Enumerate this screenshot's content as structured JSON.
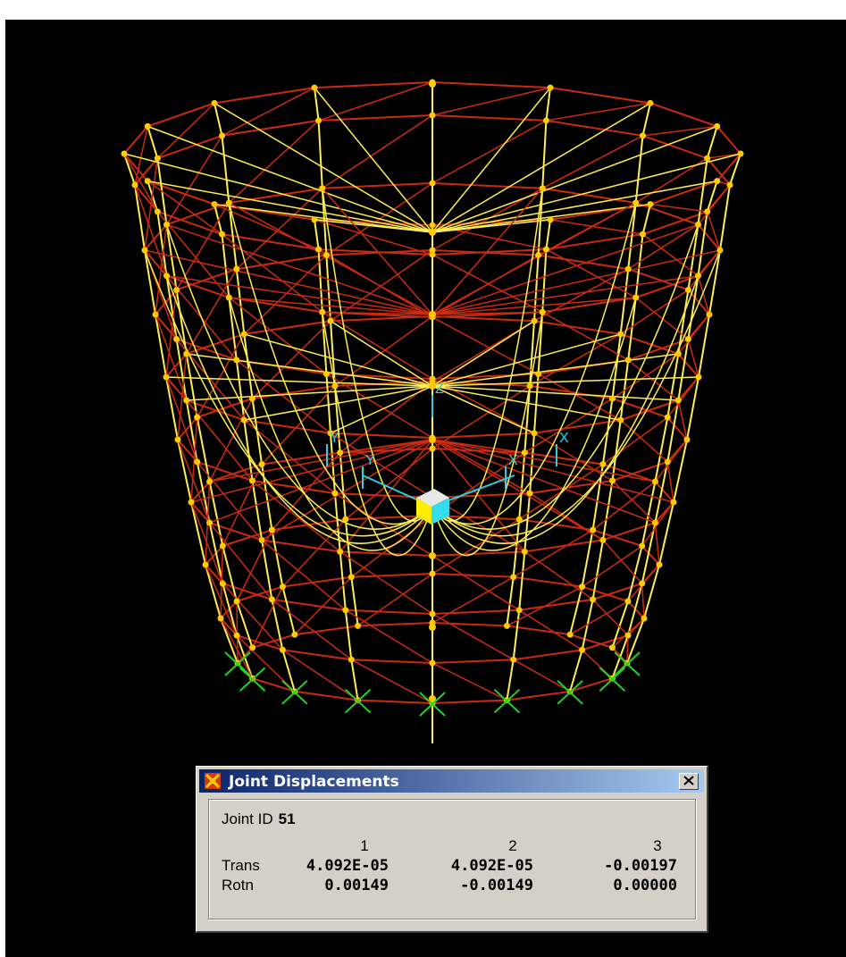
{
  "dialog": {
    "title": "Joint Displacements",
    "joint_label": "Joint ID",
    "joint_id": "51",
    "columns": [
      "1",
      "2",
      "3"
    ],
    "rows": [
      {
        "label": "Trans",
        "values": [
          "4.092E-05",
          "4.092E-05",
          "-0.00197"
        ]
      },
      {
        "label": "Rotn",
        "values": [
          "0.00149",
          "-0.00149",
          "0.00000"
        ]
      }
    ]
  },
  "viewport": {
    "background": "#000000",
    "frame_colors": {
      "ring_members": "#cc2a10",
      "radial_members": "#ffee55",
      "joints": "#ffcc00",
      "supports": "#1fd32a",
      "axes": "#33ccdd"
    },
    "axis_labels": [
      "Z",
      "Y",
      "X"
    ],
    "selected_joint_marker": "cube-icon"
  }
}
